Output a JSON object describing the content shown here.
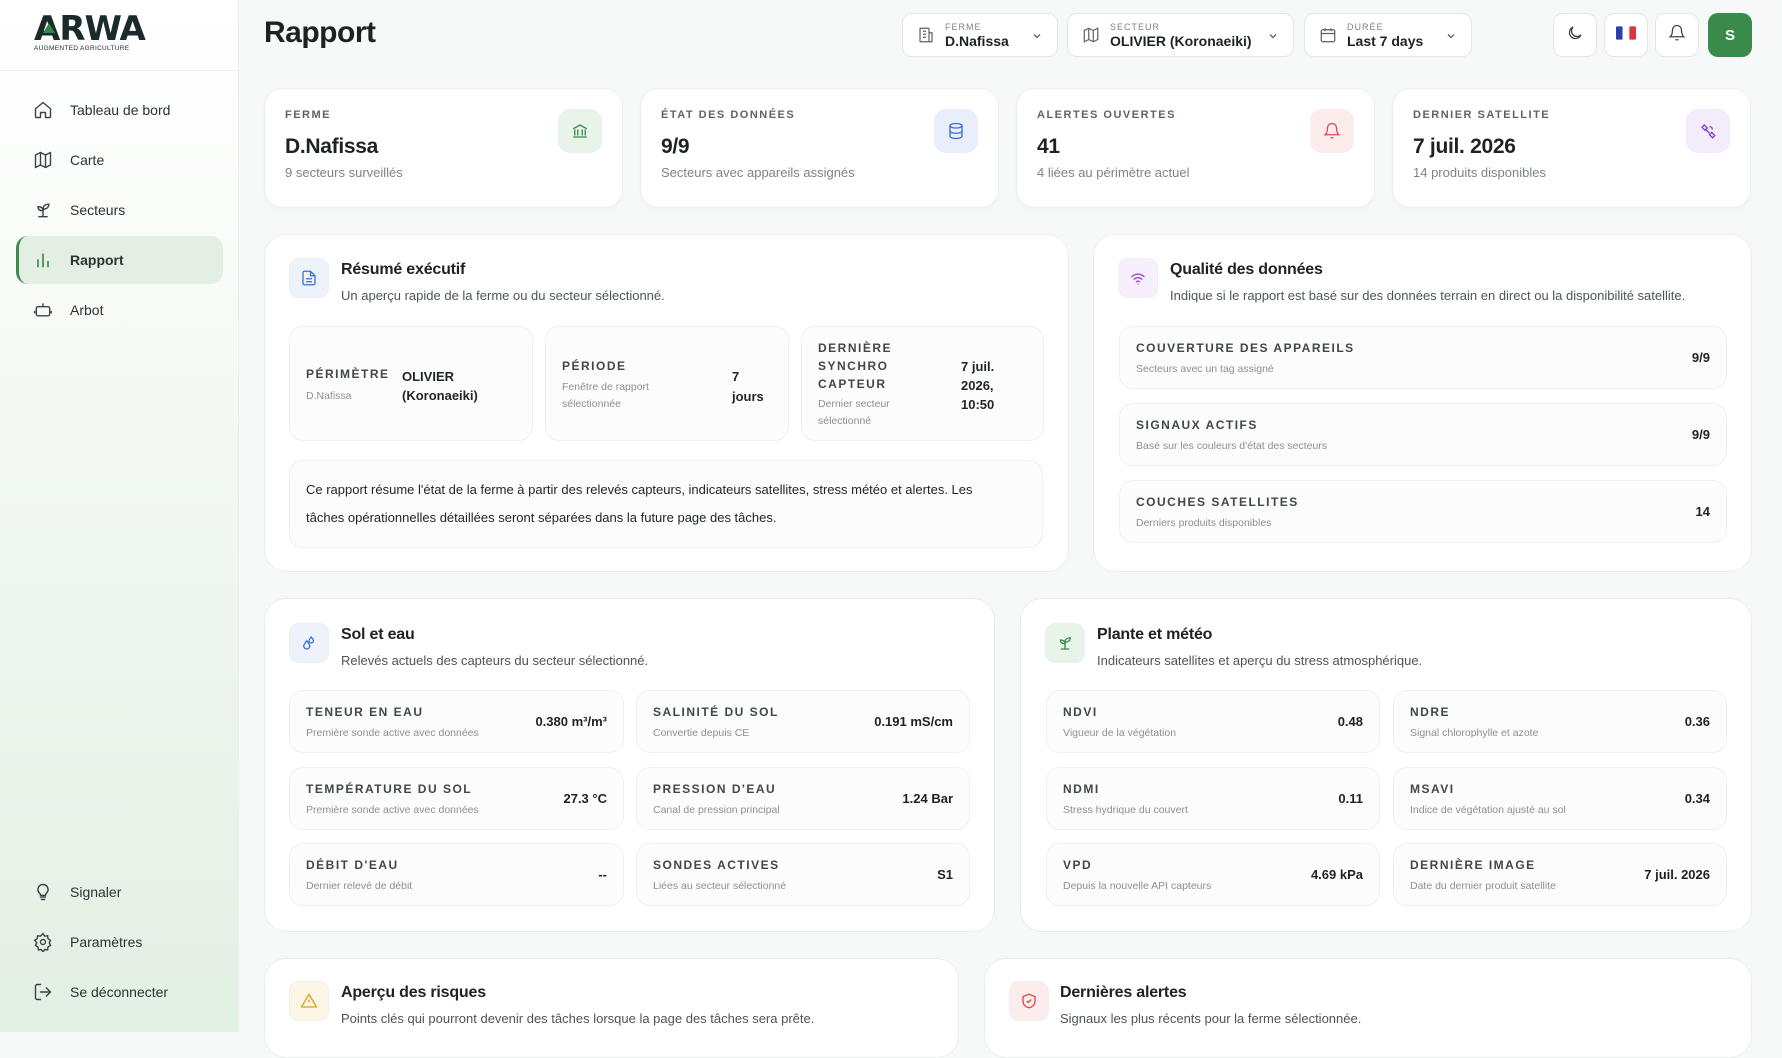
{
  "brand": {
    "name": "ARWA",
    "tagline": "AUGMENTED AGRICULTURE"
  },
  "sidebar": {
    "items": [
      {
        "label": "Tableau de bord",
        "icon": "home-icon"
      },
      {
        "label": "Carte",
        "icon": "map-icon"
      },
      {
        "label": "Secteurs",
        "icon": "sprout-icon"
      },
      {
        "label": "Rapport",
        "icon": "chart-icon",
        "active": true
      },
      {
        "label": "Arbot",
        "icon": "robot-icon"
      }
    ],
    "bottom": [
      {
        "label": "Signaler",
        "icon": "lightbulb-icon"
      },
      {
        "label": "Paramètres",
        "icon": "gear-icon"
      },
      {
        "label": "Se déconnecter",
        "icon": "logout-icon"
      }
    ]
  },
  "header": {
    "title": "Rapport",
    "farm": {
      "label": "FERME",
      "value": "D.Nafissa"
    },
    "sector": {
      "label": "SECTEUR",
      "value": "OLIVIER (Koronaeiki)"
    },
    "duration": {
      "label": "DURÉE",
      "value": "Last 7 days"
    },
    "avatar": "S"
  },
  "stats": [
    {
      "label": "FERME",
      "value": "D.Nafissa",
      "sub": "9 secteurs surveillés",
      "icon": "bank-icon"
    },
    {
      "label": "ÉTAT DES DONNÉES",
      "value": "9/9",
      "sub": "Secteurs avec appareils assignés",
      "icon": "database-icon"
    },
    {
      "label": "ALERTES OUVERTES",
      "value": "41",
      "sub": "4 liées au périmètre actuel",
      "icon": "bell-icon"
    },
    {
      "label": "DERNIER SATELLITE",
      "value": "7 juil. 2026",
      "sub": "14 produits disponibles",
      "icon": "satellite-icon"
    }
  ],
  "summary": {
    "title": "Résumé exécutif",
    "subtitle": "Un aperçu rapide de la ferme ou du secteur sélectionné.",
    "perimetre": {
      "label": "PÉRIMÈTRE",
      "sub": "D.Nafissa",
      "value_l1": "OLIVIER",
      "value_l2": "(Koronaeiki)"
    },
    "periode": {
      "label": "PÉRIODE",
      "sub_l1": "Fenêtre de rapport",
      "sub_l2": "sélectionnée",
      "value_l1": "7",
      "value_l2": "jours"
    },
    "synchro": {
      "label_l1": "DERNIÈRE",
      "label_l2": "SYNCHRO",
      "label_l3": "CAPTEUR",
      "sub_l1": "Dernier secteur",
      "sub_l2": "sélectionné",
      "value_l1": "7 juil.",
      "value_l2": "2026,",
      "value_l3": "10:50"
    },
    "text_l1": "Ce rapport résume l'état de la ferme à partir des relevés capteurs, indicateurs satellites, stress météo et alertes. Les",
    "text_l2": "tâches opérationnelles détaillées seront séparées dans la future page des tâches."
  },
  "quality": {
    "title": "Qualité des données",
    "subtitle": "Indique si le rapport est basé sur des données terrain en direct ou la disponibilité satellite.",
    "rows": [
      {
        "label": "COUVERTURE DES APPAREILS",
        "sub": "Secteurs avec un tag assigné",
        "value": "9/9"
      },
      {
        "label": "SIGNAUX ACTIFS",
        "sub": "Basé sur les couleurs d'état des secteurs",
        "value": "9/9"
      },
      {
        "label": "COUCHES SATELLITES",
        "sub": "Derniers produits disponibles",
        "value": "14"
      }
    ]
  },
  "soil": {
    "title": "Sol et eau",
    "subtitle": "Relevés actuels des capteurs du secteur sélectionné.",
    "cells": [
      {
        "label": "TENEUR EN EAU",
        "sub": "Première sonde active avec données",
        "value": "0.380 m³/m³"
      },
      {
        "label": "SALINITÉ DU SOL",
        "sub": "Convertie depuis CE",
        "value": "0.191 mS/cm"
      },
      {
        "label": "TEMPÉRATURE DU SOL",
        "sub": "Première sonde active avec données",
        "value": "27.3 °C"
      },
      {
        "label": "PRESSION D'EAU",
        "sub": "Canal de pression principal",
        "value": "1.24 Bar"
      },
      {
        "label": "DÉBIT D'EAU",
        "sub": "Dernier relevé de débit",
        "value": "--"
      },
      {
        "label": "SONDES ACTIVES",
        "sub": "Liées au secteur sélectionné",
        "value": "S1"
      }
    ]
  },
  "plant": {
    "title": "Plante et météo",
    "subtitle": "Indicateurs satellites et aperçu du stress atmosphérique.",
    "cells": [
      {
        "label": "NDVI",
        "sub": "Vigueur de la végétation",
        "value": "0.48"
      },
      {
        "label": "NDRE",
        "sub": "Signal chlorophylle et azote",
        "value": "0.36"
      },
      {
        "label": "NDMI",
        "sub": "Stress hydrique du couvert",
        "value": "0.11"
      },
      {
        "label": "MSAVI",
        "sub": "Indice de végétation ajusté au sol",
        "value": "0.34"
      },
      {
        "label": "VPD",
        "sub": "Depuis la nouvelle API capteurs",
        "value": "4.69 kPa"
      },
      {
        "label": "DERNIÈRE IMAGE",
        "sub": "Date du dernier produit satellite",
        "value": "7 juil. 2026"
      }
    ]
  },
  "risks": {
    "title": "Aperçu des risques",
    "subtitle": "Points clés qui pourront devenir des tâches lorsque la page des tâches sera prête."
  },
  "alerts": {
    "title": "Dernières alertes",
    "subtitle": "Signaux les plus récents pour la ferme sélectionnée."
  },
  "colors": {
    "accent": "#3a8a4b",
    "danger": "#e0474c",
    "info": "#3a6fd1",
    "warning": "#e0a020",
    "violet": "#8b3fd1"
  }
}
